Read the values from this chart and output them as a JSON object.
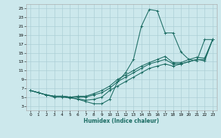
{
  "xlabel": "Humidex (Indice chaleur)",
  "ylabel": "",
  "background_color": "#cce8ec",
  "line_color": "#1a6b62",
  "grid_color": "#aacdd4",
  "xlim": [
    -0.5,
    23.5
  ],
  "ylim": [
    2,
    26
  ],
  "xticks": [
    0,
    1,
    2,
    3,
    4,
    5,
    6,
    7,
    8,
    9,
    10,
    11,
    12,
    13,
    14,
    15,
    16,
    17,
    18,
    19,
    20,
    21,
    22,
    23
  ],
  "yticks": [
    3,
    5,
    7,
    9,
    11,
    13,
    15,
    17,
    19,
    21,
    23,
    25
  ],
  "curve1_x": [
    0,
    1,
    2,
    3,
    4,
    5,
    6,
    7,
    8,
    9,
    10,
    11,
    12,
    13,
    14,
    15,
    16,
    17,
    18,
    19,
    20,
    21,
    22,
    23
  ],
  "curve1_y": [
    6.5,
    6.0,
    5.5,
    5.2,
    5.2,
    5.0,
    4.5,
    4.0,
    3.5,
    3.5,
    4.5,
    8.5,
    10.5,
    13.5,
    21.0,
    24.8,
    24.5,
    19.5,
    19.5,
    15.2,
    13.5,
    13.2,
    18.0,
    18.0
  ],
  "curve2_x": [
    0,
    1,
    2,
    3,
    4,
    5,
    6,
    7,
    8,
    9,
    10,
    11,
    12,
    13,
    14,
    15,
    16,
    17,
    18,
    19,
    20,
    21,
    22,
    23
  ],
  "curve2_y": [
    6.5,
    6.0,
    5.5,
    5.2,
    5.2,
    5.0,
    5.2,
    5.2,
    5.8,
    6.5,
    7.5,
    9.0,
    10.0,
    11.0,
    12.0,
    12.8,
    13.5,
    14.2,
    12.8,
    12.8,
    13.5,
    14.0,
    13.8,
    18.0
  ],
  "curve3_x": [
    0,
    1,
    2,
    3,
    4,
    5,
    6,
    7,
    8,
    9,
    10,
    11,
    12,
    13,
    14,
    15,
    16,
    17,
    18,
    19,
    20,
    21,
    22,
    23
  ],
  "curve3_y": [
    6.5,
    6.0,
    5.5,
    5.2,
    5.2,
    5.0,
    5.0,
    5.0,
    5.5,
    6.0,
    7.0,
    8.5,
    9.5,
    10.5,
    11.5,
    12.5,
    13.0,
    13.5,
    12.5,
    12.5,
    13.0,
    13.5,
    13.5,
    18.0
  ],
  "curve4_x": [
    0,
    1,
    2,
    3,
    4,
    5,
    6,
    7,
    8,
    9,
    10,
    11,
    12,
    13,
    14,
    15,
    16,
    17,
    18,
    19,
    20,
    21,
    22,
    23
  ],
  "curve4_y": [
    6.5,
    6.0,
    5.5,
    5.0,
    5.0,
    4.8,
    4.6,
    4.3,
    4.5,
    5.0,
    6.5,
    7.5,
    8.5,
    9.5,
    10.5,
    11.5,
    12.0,
    12.5,
    12.0,
    12.5,
    13.0,
    13.5,
    13.2,
    18.0
  ]
}
